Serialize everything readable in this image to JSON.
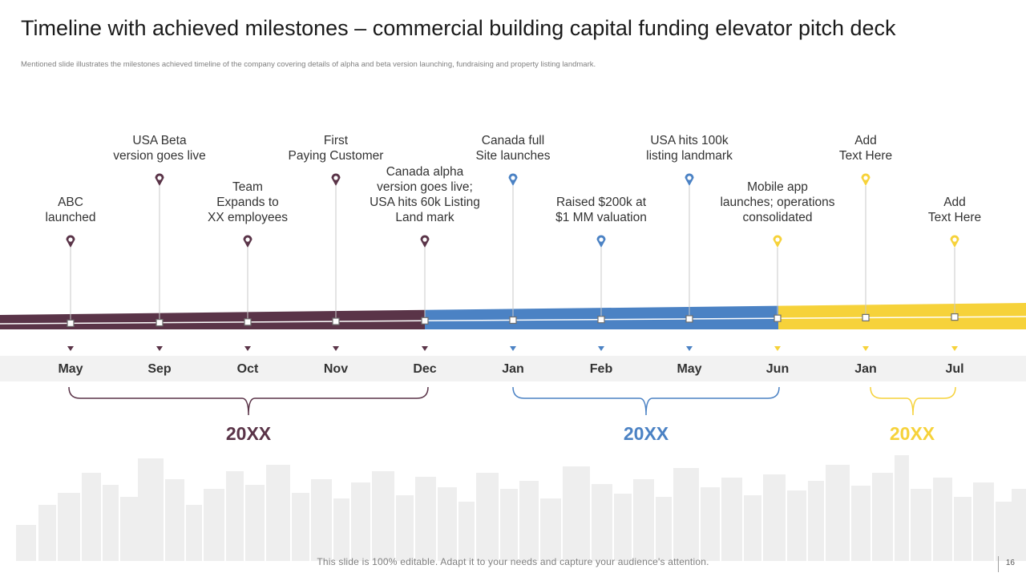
{
  "title": "Timeline with achieved milestones – commercial building capital funding elevator pitch deck",
  "subtitle": "Mentioned slide illustrates the milestones achieved timeline  of the company covering details of alpha  and beta version launching, fundraising and property listing landmark.",
  "colors": {
    "purple": "#5a3448",
    "blue": "#4b82c4",
    "yellow": "#f6d23a",
    "month_band": "#f2f2f2",
    "skyline": "#eeeeee"
  },
  "milestones": [
    {
      "month": "May",
      "label": "ABC\nlaunched",
      "group": "purple",
      "tier": "low"
    },
    {
      "month": "Sep",
      "label": "USA Beta\nversion goes live",
      "group": "purple",
      "tier": "high"
    },
    {
      "month": "Oct",
      "label": "Team\nExpands to\nXX employees",
      "group": "purple",
      "tier": "low"
    },
    {
      "month": "Nov",
      "label": "First\nPaying Customer",
      "group": "purple",
      "tier": "high"
    },
    {
      "month": "Dec",
      "label": "Canada alpha\nversion goes live;\nUSA hits 60k Listing\nLand mark",
      "group": "purple",
      "tier": "low"
    },
    {
      "month": "Jan",
      "label": "Canada full\nSite launches",
      "group": "blue",
      "tier": "high"
    },
    {
      "month": "Feb",
      "label": "Raised $200k at\n$1 MM valuation",
      "group": "blue",
      "tier": "low"
    },
    {
      "month": "May",
      "label": "USA hits  100k\nlisting landmark",
      "group": "blue",
      "tier": "high"
    },
    {
      "month": "Jun",
      "label": "Mobile app\nlaunches;  operations\nconsolidated",
      "group": "yellow",
      "tier": "low"
    },
    {
      "month": "Jan",
      "label": "Add\nText Here",
      "group": "yellow",
      "tier": "high"
    },
    {
      "month": "Jul",
      "label": "Add\nText Here",
      "group": "yellow",
      "tier": "low"
    }
  ],
  "years": [
    {
      "label": "20XX",
      "group": "purple"
    },
    {
      "label": "20XX",
      "group": "blue"
    },
    {
      "label": "20XX",
      "group": "yellow"
    }
  ],
  "footer": "This slide is 100% editable. Adapt it to your needs and capture your audience's attention.",
  "page_number": "16"
}
